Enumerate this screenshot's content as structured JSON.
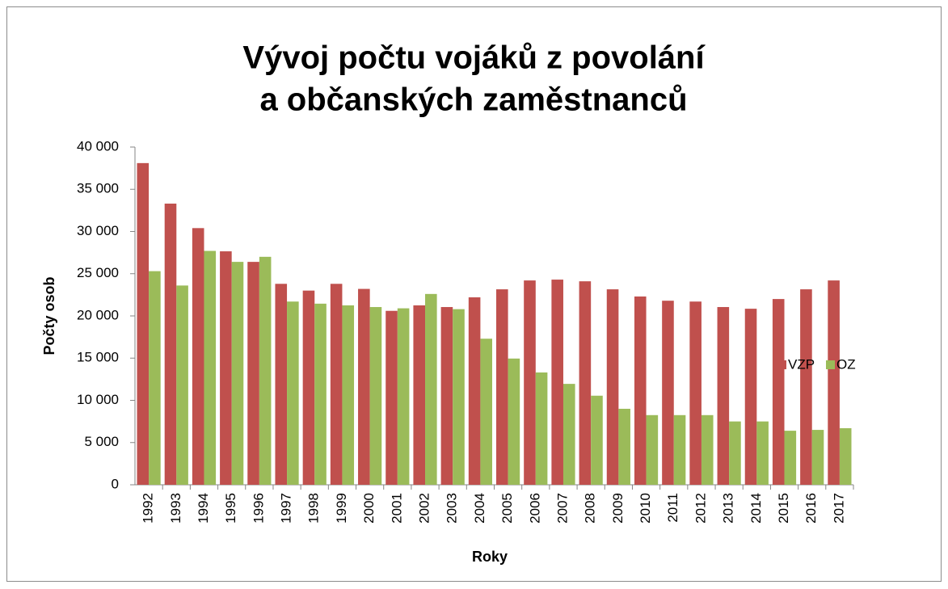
{
  "chart_data": {
    "type": "bar",
    "title": [
      "Vývoj počtu vojáků z povolání",
      "a občanských zaměstnanců"
    ],
    "x_label": "Roky",
    "y_label": "Počty osob",
    "categories": [
      "1992",
      "1993",
      "1994",
      "1995",
      "1996",
      "1997",
      "1998",
      "1999",
      "2000",
      "2001",
      "2002",
      "2003",
      "2004",
      "2005",
      "2006",
      "2007",
      "2008",
      "2009",
      "2010",
      "2011",
      "2012",
      "2013",
      "2014",
      "2015",
      "2016",
      "2017"
    ],
    "series": [
      {
        "name": "VZP",
        "color": "#c0504d",
        "values": [
          38100,
          33300,
          30400,
          27650,
          26400,
          23800,
          23000,
          23800,
          23200,
          20600,
          21250,
          21050,
          22200,
          23150,
          24200,
          24300,
          24100,
          23150,
          22300,
          21800,
          21700,
          21050,
          20850,
          22000,
          23150,
          24200
        ]
      },
      {
        "name": "OZ",
        "color": "#9bbb59",
        "values": [
          25300,
          23600,
          27700,
          26400,
          27000,
          21700,
          21450,
          21250,
          21050,
          20900,
          22600,
          20800,
          17300,
          14950,
          13300,
          11950,
          10550,
          9000,
          8250,
          8250,
          8250,
          7500,
          7500,
          6400,
          6500,
          6700
        ]
      }
    ],
    "ylim": [
      0,
      40000
    ],
    "yticks": [
      0,
      {
        "value": 5000,
        "label": "5 000"
      },
      {
        "value": 10000,
        "label": "10 000"
      },
      {
        "value": 15000,
        "label": "15 000"
      },
      {
        "value": 20000,
        "label": "20 000"
      },
      {
        "value": 25000,
        "label": "25 000"
      },
      {
        "value": 30000,
        "label": "30 000"
      },
      {
        "value": 35000,
        "label": "35 000"
      },
      {
        "value": 40000,
        "label": "40 000"
      }
    ],
    "grid": false,
    "legend": "right"
  }
}
